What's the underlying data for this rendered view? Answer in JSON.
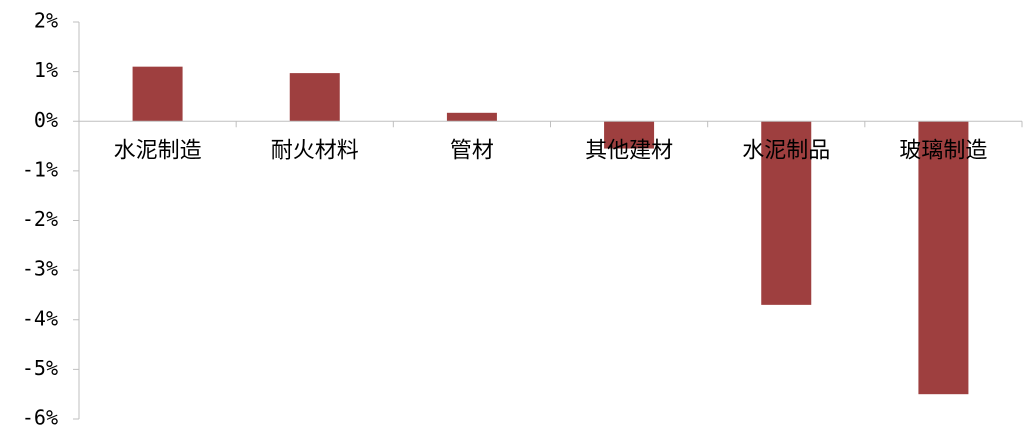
{
  "chart_data": {
    "type": "bar",
    "categories": [
      "水泥制造",
      "耐火材料",
      "管材",
      "其他建材",
      "水泥制品",
      "玻璃制造"
    ],
    "values": [
      1.1,
      0.97,
      0.17,
      -0.55,
      -3.7,
      -5.5
    ],
    "ylim": [
      -6,
      2
    ],
    "yticks": [
      2,
      1,
      0,
      -1,
      -2,
      -3,
      -4,
      -5,
      -6
    ],
    "ytick_labels": [
      "2%",
      "1%",
      "0%",
      "-1%",
      "-2%",
      "-3%",
      "-4%",
      "-5%",
      "-6%"
    ],
    "bar_color": "#9e3f3f",
    "axis_color": "#bfbfbf",
    "grid": false,
    "legend": "none"
  }
}
